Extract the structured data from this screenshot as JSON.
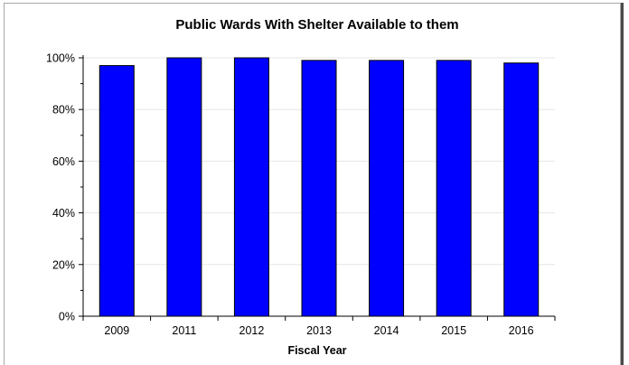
{
  "chart_data": {
    "type": "bar",
    "title": "Public Wards With Shelter Available to them",
    "xlabel": "Fiscal Year",
    "ylabel": "",
    "categories": [
      "2009",
      "2011",
      "2012",
      "2013",
      "2014",
      "2015",
      "2016"
    ],
    "values": [
      97,
      100,
      100,
      99,
      99,
      99,
      98
    ],
    "value_unit": "%",
    "ylim": [
      0,
      100
    ],
    "yticks": [
      0,
      20,
      40,
      60,
      80,
      100
    ],
    "ytick_labels": [
      "0%",
      "20%",
      "40%",
      "60%",
      "80%",
      "100%"
    ],
    "grid": true,
    "legend": "none",
    "colors": {
      "bar_fill": "#0000ff",
      "bar_stroke": "#000000",
      "grid": "#e6e6e6",
      "axis": "#000000",
      "frame": "#a8a8a8"
    }
  }
}
